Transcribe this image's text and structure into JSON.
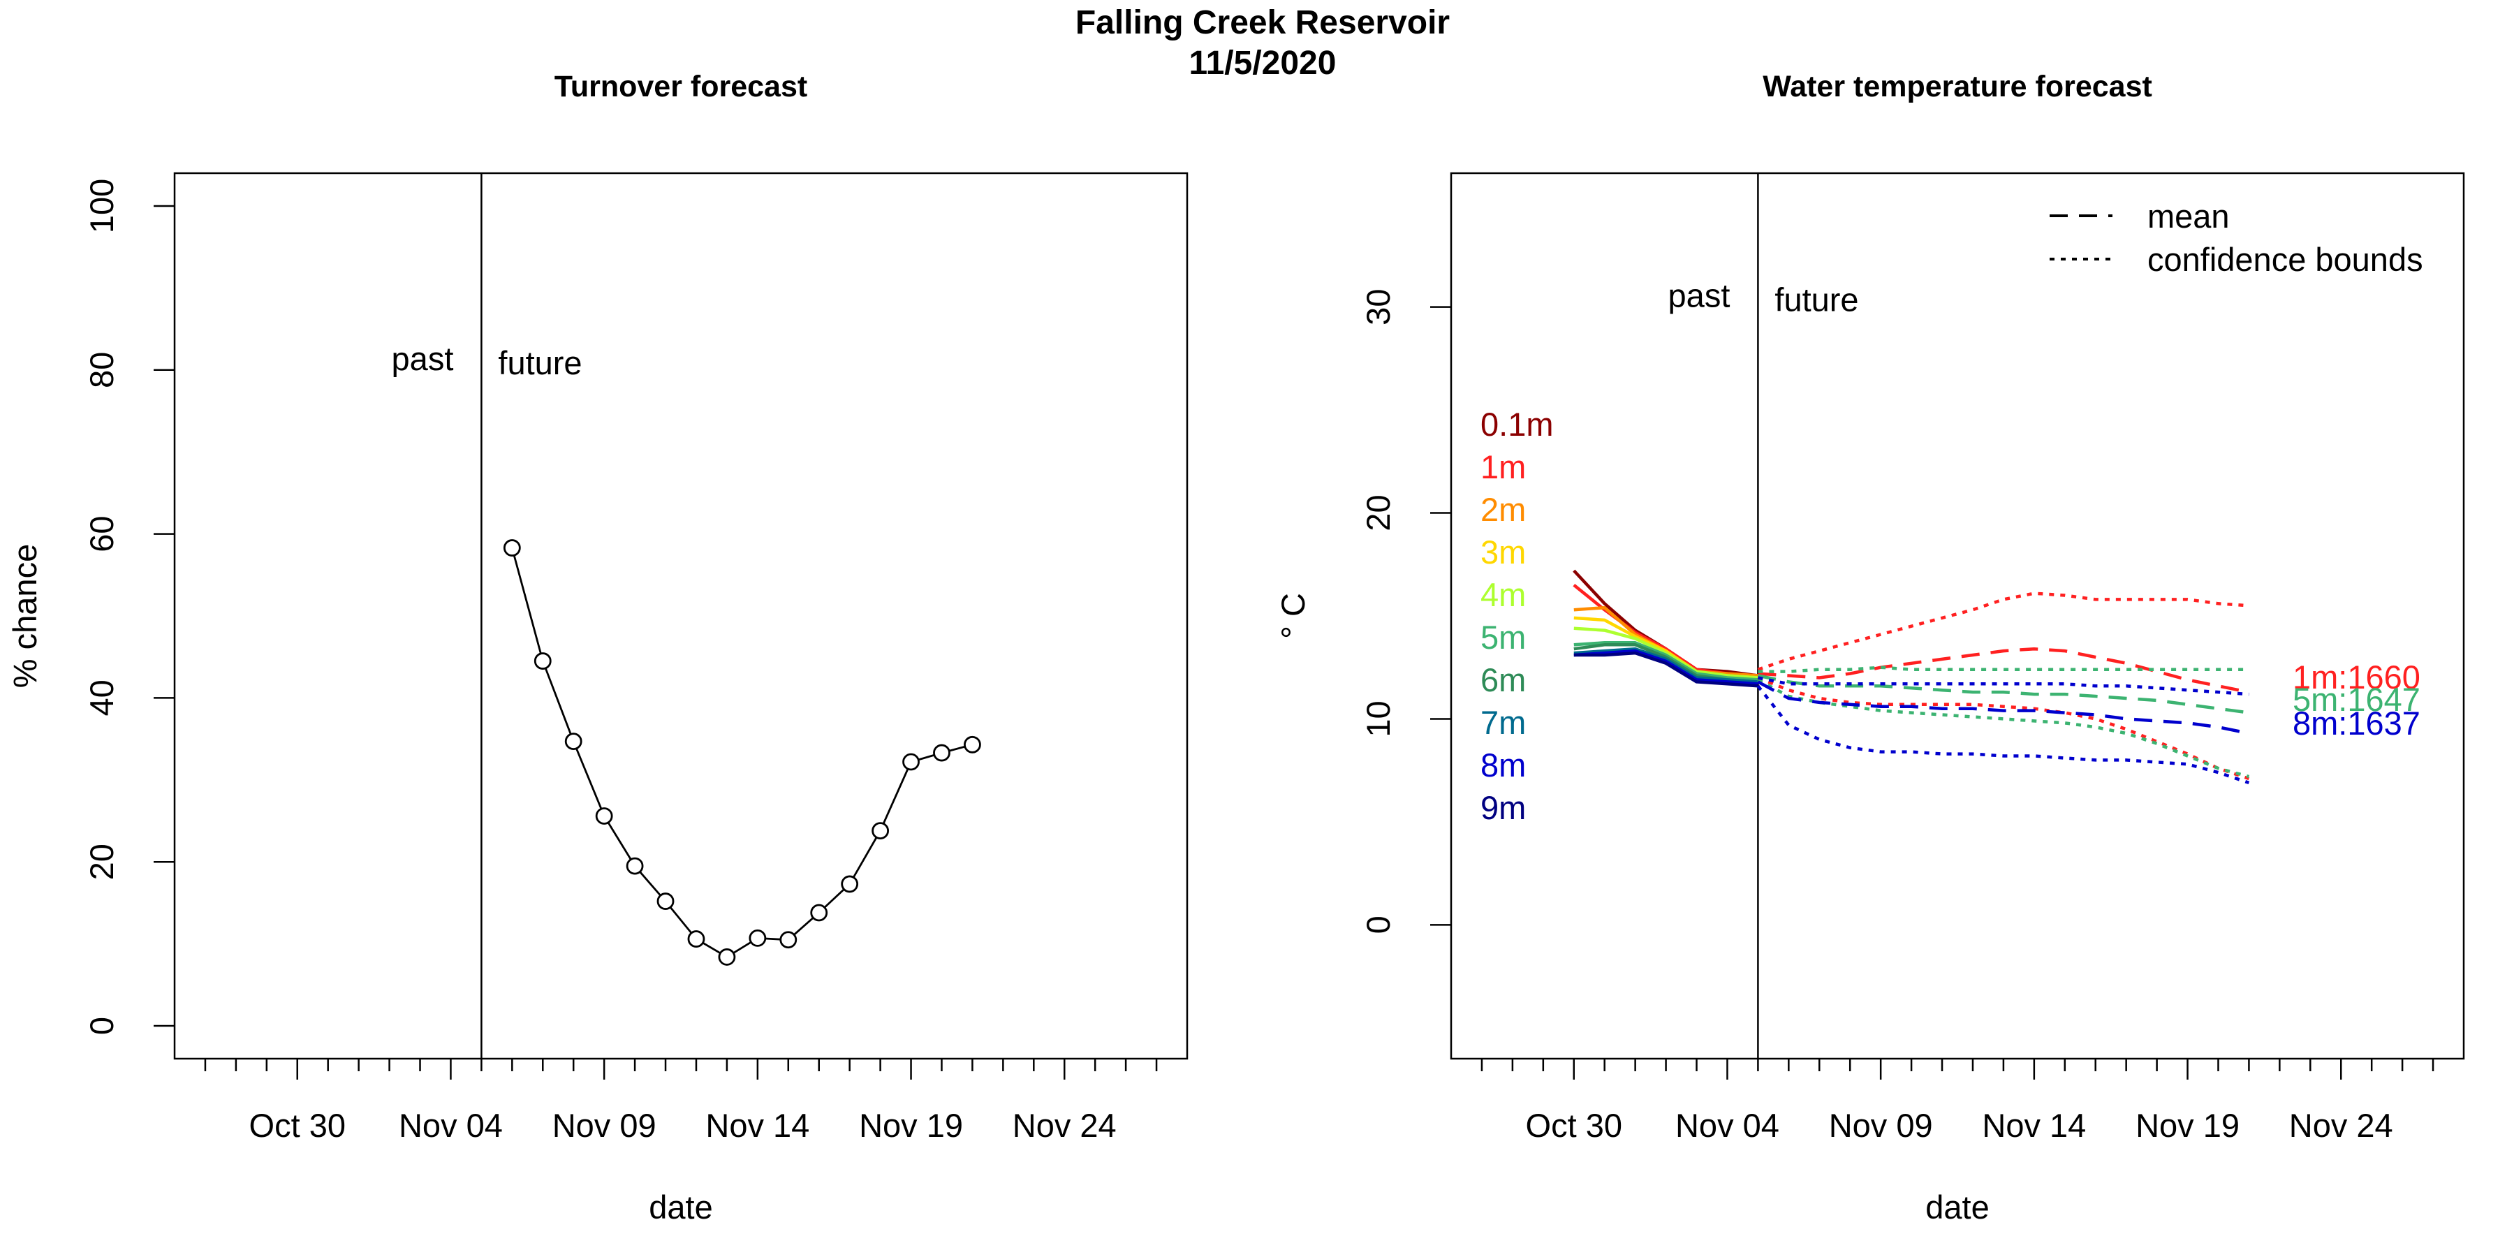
{
  "figure": {
    "title_line1": "Falling Creek Reservoir",
    "title_line2": "11/5/2020"
  },
  "chart_data": [
    {
      "type": "line",
      "title": "Turnover forecast",
      "xlabel": "date",
      "ylabel": "% chance",
      "xlim": [
        "2020-10-26",
        "2020-11-28"
      ],
      "ylim": [
        -4,
        104
      ],
      "yticks": [
        0,
        20,
        40,
        60,
        80,
        100
      ],
      "xticks": [
        {
          "date": "2020-10-30",
          "label": "Oct 30"
        },
        {
          "date": "2020-11-04",
          "label": "Nov 04"
        },
        {
          "date": "2020-11-09",
          "label": "Nov 09"
        },
        {
          "date": "2020-11-14",
          "label": "Nov 14"
        },
        {
          "date": "2020-11-19",
          "label": "Nov 19"
        },
        {
          "date": "2020-11-24",
          "label": "Nov 24"
        }
      ],
      "divider_date": "2020-11-05",
      "past_label": "past",
      "future_label": "future",
      "annotation_y": 80,
      "grid": false,
      "series": [
        {
          "marker": "open-circle",
          "x": [
            "2020-11-06",
            "2020-11-07",
            "2020-11-08",
            "2020-11-09",
            "2020-11-10",
            "2020-11-11",
            "2020-11-12",
            "2020-11-13",
            "2020-11-14",
            "2020-11-15",
            "2020-11-16",
            "2020-11-17",
            "2020-11-18",
            "2020-11-19",
            "2020-11-20",
            "2020-11-21"
          ],
          "y": [
            58.3,
            44.5,
            34.7,
            25.6,
            19.5,
            15.2,
            10.6,
            8.4,
            10.7,
            10.5,
            13.8,
            17.3,
            23.8,
            32.2,
            33.3,
            34.3
          ]
        }
      ]
    },
    {
      "type": "line",
      "title": "Water temperature forecast",
      "xlabel": "date",
      "ylabel": "° C",
      "xlim": [
        "2020-10-26",
        "2020-11-28"
      ],
      "ylim": [
        -6.5,
        36.5
      ],
      "yticks": [
        0,
        10,
        20,
        30
      ],
      "xticks": [
        {
          "date": "2020-10-30",
          "label": "Oct 30"
        },
        {
          "date": "2020-11-04",
          "label": "Nov 04"
        },
        {
          "date": "2020-11-09",
          "label": "Nov 09"
        },
        {
          "date": "2020-11-14",
          "label": "Nov 14"
        },
        {
          "date": "2020-11-19",
          "label": "Nov 19"
        },
        {
          "date": "2020-11-24",
          "label": "Nov 24"
        }
      ],
      "divider_date": "2020-11-05",
      "past_label": "past",
      "future_label": "future",
      "annotation_y": 30,
      "grid": false,
      "legend": {
        "position": "top-right",
        "entries": [
          {
            "label": "mean",
            "style": "dashed"
          },
          {
            "label": "confidence bounds",
            "style": "dotted"
          }
        ]
      },
      "depth_labels": [
        {
          "label": "0.1m",
          "color": "#8b0000"
        },
        {
          "label": "1m",
          "color": "#ff2020"
        },
        {
          "label": "2m",
          "color": "#ff8c00"
        },
        {
          "label": "3m",
          "color": "#ffd700"
        },
        {
          "label": "4m",
          "color": "#adff2f"
        },
        {
          "label": "5m",
          "color": "#3cb371"
        },
        {
          "label": "6m",
          "color": "#2e8b57"
        },
        {
          "label": "7m",
          "color": "#006a8e"
        },
        {
          "label": "8m",
          "color": "#0000cd"
        },
        {
          "label": "9m",
          "color": "#000080"
        }
      ],
      "observed_dates": [
        "2020-10-30",
        "2020-10-31",
        "2020-11-01",
        "2020-11-02",
        "2020-11-03",
        "2020-11-04",
        "2020-11-05"
      ],
      "observed": [
        {
          "depth": "0.1m",
          "color": "#8b0000",
          "y": [
            17.2,
            15.6,
            14.3,
            13.4,
            12.4,
            12.3,
            12.1
          ]
        },
        {
          "depth": "1m",
          "color": "#ff2020",
          "y": [
            16.5,
            15.3,
            14.2,
            13.4,
            12.4,
            12.2,
            12.1
          ]
        },
        {
          "depth": "2m",
          "color": "#ff8c00",
          "y": [
            15.3,
            15.4,
            14.1,
            13.3,
            12.3,
            12.2,
            12.1
          ]
        },
        {
          "depth": "3m",
          "color": "#ffd700",
          "y": [
            14.9,
            14.8,
            14.0,
            13.3,
            12.3,
            12.1,
            12.0
          ]
        },
        {
          "depth": "4m",
          "color": "#adff2f",
          "y": [
            14.4,
            14.3,
            13.9,
            13.2,
            12.3,
            12.1,
            12.0
          ]
        },
        {
          "depth": "5m",
          "color": "#3cb371",
          "y": [
            13.6,
            13.7,
            13.7,
            13.1,
            12.2,
            12.0,
            11.9
          ]
        },
        {
          "depth": "6m",
          "color": "#2e8b57",
          "y": [
            13.4,
            13.6,
            13.6,
            13.0,
            12.1,
            11.9,
            11.8
          ]
        },
        {
          "depth": "7m",
          "color": "#006a8e",
          "y": [
            13.2,
            13.3,
            13.4,
            12.9,
            12.0,
            11.9,
            11.8
          ]
        },
        {
          "depth": "8m",
          "color": "#0000cd",
          "y": [
            13.1,
            13.2,
            13.3,
            12.8,
            11.9,
            11.8,
            11.7
          ]
        },
        {
          "depth": "9m",
          "color": "#000080",
          "y": [
            13.1,
            13.1,
            13.2,
            12.7,
            11.8,
            11.7,
            11.6
          ]
        }
      ],
      "forecast_dates": [
        "2020-11-05",
        "2020-11-06",
        "2020-11-07",
        "2020-11-08",
        "2020-11-09",
        "2020-11-10",
        "2020-11-11",
        "2020-11-12",
        "2020-11-13",
        "2020-11-14",
        "2020-11-15",
        "2020-11-16",
        "2020-11-17",
        "2020-11-18",
        "2020-11-19",
        "2020-11-20",
        "2020-11-21"
      ],
      "forecast": [
        {
          "depth": "1m",
          "color": "#ff2020",
          "end_label": "1m:1660",
          "mean": [
            12.2,
            12.1,
            12.0,
            12.2,
            12.5,
            12.7,
            12.9,
            13.1,
            13.3,
            13.4,
            13.3,
            13.0,
            12.7,
            12.3,
            11.9,
            11.6,
            11.3
          ],
          "upper": [
            12.4,
            12.9,
            13.3,
            13.7,
            14.1,
            14.5,
            14.9,
            15.3,
            15.8,
            16.1,
            16.0,
            15.8,
            15.8,
            15.8,
            15.8,
            15.6,
            15.5
          ],
          "lower": [
            12.0,
            11.4,
            11.0,
            10.8,
            10.7,
            10.7,
            10.7,
            10.7,
            10.6,
            10.5,
            10.3,
            10.0,
            9.5,
            8.9,
            8.3,
            7.6,
            7.1
          ]
        },
        {
          "depth": "5m",
          "color": "#3cb371",
          "end_label": "5m:1647",
          "mean": [
            12.1,
            11.8,
            11.6,
            11.6,
            11.6,
            11.5,
            11.4,
            11.3,
            11.3,
            11.2,
            11.2,
            11.1,
            11.0,
            10.9,
            10.7,
            10.5,
            10.3
          ],
          "upper": [
            12.3,
            12.3,
            12.4,
            12.4,
            12.5,
            12.4,
            12.4,
            12.4,
            12.4,
            12.4,
            12.4,
            12.4,
            12.4,
            12.4,
            12.4,
            12.4,
            12.4
          ],
          "lower": [
            11.9,
            11.1,
            10.8,
            10.6,
            10.4,
            10.3,
            10.2,
            10.1,
            10.0,
            9.9,
            9.8,
            9.6,
            9.3,
            8.8,
            8.2,
            7.6,
            7.2
          ]
        },
        {
          "depth": "8m",
          "color": "#0000cd",
          "end_label": "8m:1637",
          "mean": [
            11.8,
            11.0,
            10.8,
            10.7,
            10.6,
            10.6,
            10.5,
            10.5,
            10.4,
            10.4,
            10.3,
            10.2,
            10.0,
            9.9,
            9.8,
            9.6,
            9.3
          ],
          "upper": [
            12.0,
            11.7,
            11.7,
            11.7,
            11.7,
            11.7,
            11.7,
            11.7,
            11.7,
            11.7,
            11.7,
            11.6,
            11.6,
            11.5,
            11.4,
            11.3,
            11.2
          ],
          "lower": [
            11.6,
            9.7,
            9.0,
            8.6,
            8.4,
            8.4,
            8.3,
            8.3,
            8.2,
            8.2,
            8.1,
            8.0,
            8.0,
            7.9,
            7.8,
            7.4,
            6.9
          ]
        }
      ]
    }
  ]
}
